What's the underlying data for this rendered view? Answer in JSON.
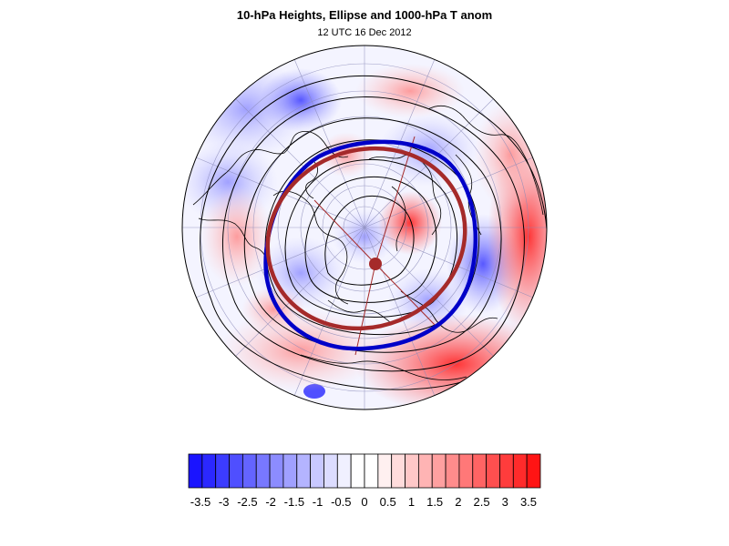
{
  "title": "10-hPa Heights, Ellipse and 1000-hPa T anom",
  "subtitle": "12 UTC 16 Dec 2012",
  "colors": {
    "ellipse_vortex": "#0000c8",
    "ellipse_fit": "#a52a2a",
    "contour": "#000000",
    "cold_max": "#0000ff",
    "warm_max": "#ff0000"
  },
  "colorbar": {
    "labels": [
      "-3.5",
      "-3",
      "-2.5",
      "-2",
      "-1.5",
      "-1",
      "-0.5",
      "0",
      "0.5",
      "1",
      "1.5",
      "2",
      "2.5",
      "3",
      "3.5"
    ],
    "colors": [
      "#1a14ff",
      "#2b28ff",
      "#3c3cff",
      "#4f4fff",
      "#6464ff",
      "#7878ff",
      "#8c8cff",
      "#a0a0ff",
      "#b4b4ff",
      "#c8c8ff",
      "#dcdcff",
      "#f0f0ff",
      "#ffffff",
      "#ffffff",
      "#fff0f0",
      "#ffdcdc",
      "#ffc8c8",
      "#ffb4b4",
      "#ffa0a0",
      "#ff8c8c",
      "#ff7878",
      "#ff6464",
      "#ff4f4f",
      "#ff3c3c",
      "#ff2b2b",
      "#ff1414"
    ]
  }
}
